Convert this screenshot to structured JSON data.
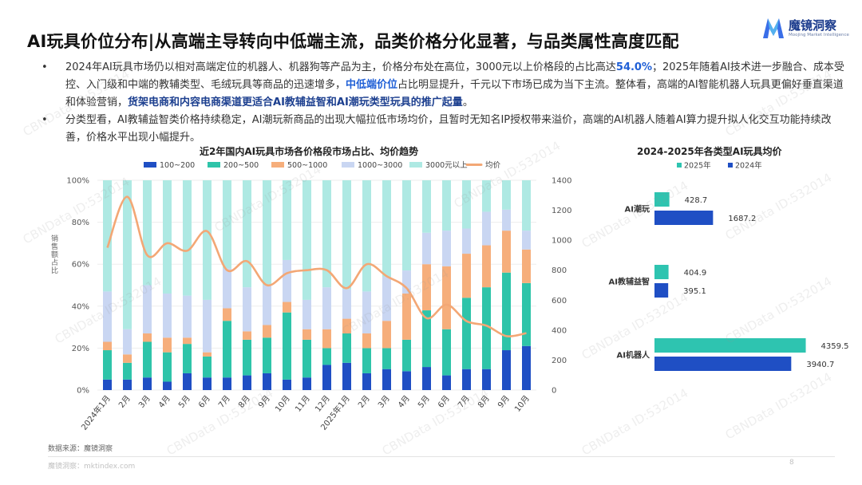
{
  "title": "AI玩具价位分布|从高端主导转向中低端主流，品类价格分化显著，与品类属性高度匹配",
  "logo": {
    "name": "魔镜洞察",
    "sub": "Moojing Market Intelligence"
  },
  "bullets": [
    {
      "text1": "2024年AI玩具市场仍以相对高端定位的机器人、机器狗等产品为主，价格分布处在高位，3000元以上价格段的占比高达",
      "hl1": "54.0%",
      "text2": "；2025年随着AI技术进一步融合、成本受控、入门级和中端的教辅类型、毛绒玩具等商品的迅速增多，",
      "hl2": "中低端价位",
      "text3": "占比明显提升，千元以下市场已成为当下主流。整体看，高端的AI智能机器人玩具更偏好垂直渠道和体验营销，",
      "hl3": "货架电商和内容电商渠道更适合AI教辅益智和AI潮玩类型玩具的推广起量",
      "text4": "。"
    },
    {
      "text1": "分类型看，AI教辅益智类价格持续稳定，AI潮玩新商品的出现大幅拉低市场均价，且暂时无知名IP授权带来溢价，高端的AI机器人随着AI算力提升拟人化交互功能持续改善，价格水平出现小幅提升。"
    }
  ],
  "bullet_marker": "•",
  "colors": {
    "seg1": "#1f4fc4",
    "seg2": "#2ec4a9",
    "seg3": "#f6ae7b",
    "seg4": "#c9d6f2",
    "seg5": "#aee9e3",
    "avg": "#f3a775",
    "bar2025": "#2ec4b0",
    "bar2024": "#1f4fc4"
  },
  "chart_data": [
    {
      "type": "bar",
      "stacked": true,
      "title": "近2年国内AI玩具市场各价格段市场占比、均价趋势",
      "ylabel": "销售额占比",
      "y2label": "",
      "categories": [
        "2024年1月",
        "2月",
        "3月",
        "4月",
        "5月",
        "6月",
        "7月",
        "8月",
        "9月",
        "10月",
        "11月",
        "12月",
        "2025年1月",
        "2月",
        "3月",
        "4月",
        "5月",
        "6月",
        "7月",
        "8月",
        "9月",
        "10月"
      ],
      "series": [
        {
          "name": "100~200",
          "values": [
            5,
            5,
            6,
            4,
            8,
            6,
            6,
            7,
            8,
            5,
            6,
            12,
            13,
            8,
            10,
            9,
            11,
            7,
            10,
            10,
            19,
            21
          ]
        },
        {
          "name": "200~500",
          "values": [
            14,
            8,
            17,
            14,
            14,
            10,
            27,
            17,
            17,
            32,
            18,
            8,
            14,
            12,
            10,
            15,
            27,
            22,
            34,
            39,
            37,
            30
          ]
        },
        {
          "name": "500~1000",
          "values": [
            4,
            4,
            4,
            7,
            3,
            2,
            6,
            4,
            6,
            5,
            5,
            9,
            7,
            7,
            13,
            22,
            22,
            30,
            21,
            20,
            20,
            16
          ]
        },
        {
          "name": "1000~3000",
          "values": [
            24,
            12,
            23,
            21,
            20,
            25,
            19,
            21,
            19,
            20,
            14,
            20,
            14,
            20,
            21,
            11,
            15,
            17,
            12,
            16,
            10,
            9
          ]
        },
        {
          "name": "3000元以上",
          "values": [
            53,
            71,
            50,
            54,
            55,
            57,
            42,
            51,
            50,
            38,
            57,
            51,
            52,
            53,
            46,
            43,
            25,
            24,
            23,
            15,
            14,
            24
          ]
        }
      ],
      "line": {
        "name": "均价",
        "values": [
          950,
          1290,
          900,
          980,
          930,
          1060,
          800,
          860,
          700,
          780,
          800,
          800,
          680,
          840,
          760,
          680,
          480,
          570,
          460,
          430,
          360,
          380
        ]
      },
      "ylim": [
        0,
        100
      ],
      "yticks": [
        "0%",
        "20%",
        "40%",
        "60%",
        "80%",
        "100%"
      ],
      "y2lim": [
        0,
        1400
      ],
      "y2ticks": [
        "0",
        "200",
        "400",
        "600",
        "800",
        "1000",
        "1200",
        "1400"
      ],
      "legend": "top"
    },
    {
      "type": "bar",
      "orientation": "horizontal",
      "title": "2024-2025年各类型AI玩具均价",
      "categories": [
        "AI潮玩",
        "AI教辅益智",
        "AI机器人"
      ],
      "series": [
        {
          "name": "2025年",
          "values": [
            428.7,
            404.9,
            4359.5
          ]
        },
        {
          "name": "2024年",
          "values": [
            1687.2,
            395.1,
            3940.7
          ]
        }
      ],
      "value_labels": [
        [
          "428.7",
          "404.9",
          "4359.5"
        ],
        [
          "1687.2",
          "395.1",
          "3940.7"
        ]
      ],
      "xlim": [
        0,
        4600
      ],
      "legend": "top"
    }
  ],
  "source": "数据来源：魔镜洞察",
  "footer_left": "魔镜洞察：mktindex.com",
  "page_number": "8",
  "watermark": "CBNData ID:532014"
}
